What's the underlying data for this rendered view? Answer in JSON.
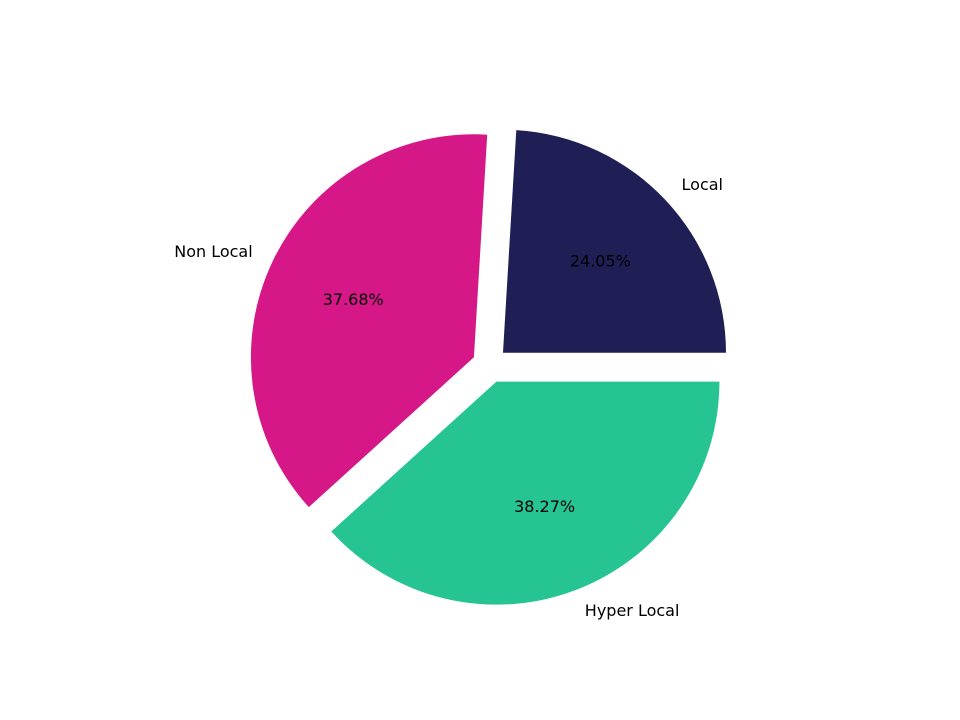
{
  "chart_data": {
    "type": "pie",
    "title": "",
    "labels": [
      "Local",
      "Non Local",
      "Hyper Local"
    ],
    "values": [
      24.05,
      37.68,
      38.27
    ],
    "percent_labels": [
      "24.05%",
      "37.68%",
      "38.27%"
    ],
    "colors": [
      "#1f1e55",
      "#d61788",
      "#25c492"
    ],
    "exploded": true,
    "start_angle_degrees": 0,
    "direction": "counterclockwise",
    "legend": "none"
  }
}
